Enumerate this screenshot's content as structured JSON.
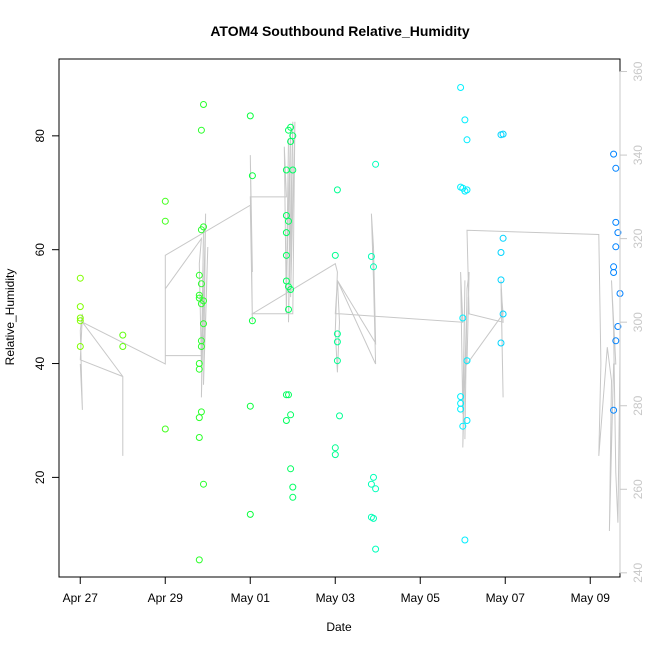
{
  "chart_data": {
    "type": "scatter",
    "title": "ATOM4 Southbound Relative_Humidity",
    "xlabel": "Date",
    "ylabel": "Relative_Humidity",
    "x_unit": "days since Apr 27",
    "xlim": [
      -0.5,
      12.7
    ],
    "ylim": [
      2.5,
      93.5
    ],
    "x_ticks": [
      {
        "value": 0,
        "label": "Apr 27"
      },
      {
        "value": 2,
        "label": "Apr 29"
      },
      {
        "value": 4,
        "label": "May 01"
      },
      {
        "value": 6,
        "label": "May 03"
      },
      {
        "value": 8,
        "label": "May 05"
      },
      {
        "value": 10,
        "label": "May 07"
      },
      {
        "value": 12,
        "label": "May 09"
      }
    ],
    "y_ticks": [
      20,
      40,
      60,
      80
    ],
    "right_axis": {
      "label": "",
      "ylim": [
        239,
        363
      ],
      "ticks": [
        240,
        260,
        280,
        300,
        320,
        340,
        360
      ],
      "color": "#c8c8c8"
    },
    "point_color_range": [
      "#80ff00",
      "#00ff40",
      "#00ffff",
      "#0080ff"
    ],
    "points": [
      {
        "x": 0.0,
        "y": 55
      },
      {
        "x": 0.0,
        "y": 50
      },
      {
        "x": 0.0,
        "y": 48
      },
      {
        "x": 0.0,
        "y": 47.5
      },
      {
        "x": 0.0,
        "y": 43
      },
      {
        "x": 1.0,
        "y": 45
      },
      {
        "x": 1.0,
        "y": 43
      },
      {
        "x": 2.0,
        "y": 68.5
      },
      {
        "x": 2.0,
        "y": 65
      },
      {
        "x": 2.0,
        "y": 28.5
      },
      {
        "x": 2.8,
        "y": 55.5
      },
      {
        "x": 2.8,
        "y": 52
      },
      {
        "x": 2.8,
        "y": 51.5
      },
      {
        "x": 2.8,
        "y": 40
      },
      {
        "x": 2.8,
        "y": 39
      },
      {
        "x": 2.8,
        "y": 30.5
      },
      {
        "x": 2.8,
        "y": 27
      },
      {
        "x": 2.8,
        "y": 5.5
      },
      {
        "x": 2.85,
        "y": 81
      },
      {
        "x": 2.85,
        "y": 63.5
      },
      {
        "x": 2.85,
        "y": 54
      },
      {
        "x": 2.85,
        "y": 50.5
      },
      {
        "x": 2.85,
        "y": 44
      },
      {
        "x": 2.85,
        "y": 43
      },
      {
        "x": 2.85,
        "y": 31.5
      },
      {
        "x": 2.9,
        "y": 85.5
      },
      {
        "x": 2.9,
        "y": 64
      },
      {
        "x": 2.9,
        "y": 51
      },
      {
        "x": 2.9,
        "y": 47
      },
      {
        "x": 2.9,
        "y": 18.8
      },
      {
        "x": 4.0,
        "y": 83.5
      },
      {
        "x": 4.0,
        "y": 32.5
      },
      {
        "x": 4.0,
        "y": 13.5
      },
      {
        "x": 4.05,
        "y": 73
      },
      {
        "x": 4.05,
        "y": 47.5
      },
      {
        "x": 4.85,
        "y": 74
      },
      {
        "x": 4.85,
        "y": 66
      },
      {
        "x": 4.85,
        "y": 63
      },
      {
        "x": 4.85,
        "y": 59
      },
      {
        "x": 4.85,
        "y": 54.5
      },
      {
        "x": 4.85,
        "y": 34.5
      },
      {
        "x": 4.85,
        "y": 30
      },
      {
        "x": 4.9,
        "y": 81
      },
      {
        "x": 4.9,
        "y": 65
      },
      {
        "x": 4.9,
        "y": 53.5
      },
      {
        "x": 4.9,
        "y": 49.5
      },
      {
        "x": 4.9,
        "y": 34.5
      },
      {
        "x": 4.95,
        "y": 81.5
      },
      {
        "x": 4.95,
        "y": 79
      },
      {
        "x": 4.95,
        "y": 53
      },
      {
        "x": 4.95,
        "y": 31
      },
      {
        "x": 4.95,
        "y": 21.5
      },
      {
        "x": 5.0,
        "y": 80
      },
      {
        "x": 5.0,
        "y": 74
      },
      {
        "x": 5.0,
        "y": 18.3
      },
      {
        "x": 5.0,
        "y": 16.5
      },
      {
        "x": 6.0,
        "y": 59
      },
      {
        "x": 6.0,
        "y": 25.2
      },
      {
        "x": 6.0,
        "y": 24
      },
      {
        "x": 6.05,
        "y": 70.5
      },
      {
        "x": 6.05,
        "y": 45.2
      },
      {
        "x": 6.05,
        "y": 43.8
      },
      {
        "x": 6.05,
        "y": 40.5
      },
      {
        "x": 6.1,
        "y": 30.8
      },
      {
        "x": 6.85,
        "y": 58.8
      },
      {
        "x": 6.85,
        "y": 18.8
      },
      {
        "x": 6.85,
        "y": 13
      },
      {
        "x": 6.9,
        "y": 57
      },
      {
        "x": 6.9,
        "y": 20
      },
      {
        "x": 6.9,
        "y": 12.8
      },
      {
        "x": 6.95,
        "y": 75
      },
      {
        "x": 6.95,
        "y": 18
      },
      {
        "x": 6.95,
        "y": 7.4
      },
      {
        "x": 8.95,
        "y": 88.5
      },
      {
        "x": 8.95,
        "y": 71
      },
      {
        "x": 8.95,
        "y": 34.2
      },
      {
        "x": 8.95,
        "y": 33
      },
      {
        "x": 8.95,
        "y": 32
      },
      {
        "x": 9.0,
        "y": 70.8
      },
      {
        "x": 9.0,
        "y": 48
      },
      {
        "x": 9.0,
        "y": 29
      },
      {
        "x": 9.05,
        "y": 82.8
      },
      {
        "x": 9.05,
        "y": 70.3
      },
      {
        "x": 9.05,
        "y": 9
      },
      {
        "x": 9.1,
        "y": 79.3
      },
      {
        "x": 9.1,
        "y": 70.5
      },
      {
        "x": 9.1,
        "y": 40.5
      },
      {
        "x": 9.1,
        "y": 30
      },
      {
        "x": 9.9,
        "y": 80.2
      },
      {
        "x": 9.9,
        "y": 59.5
      },
      {
        "x": 9.9,
        "y": 54.7
      },
      {
        "x": 9.9,
        "y": 43.6
      },
      {
        "x": 9.95,
        "y": 80.3
      },
      {
        "x": 9.95,
        "y": 62
      },
      {
        "x": 9.95,
        "y": 48.7
      },
      {
        "x": 12.55,
        "y": 76.8
      },
      {
        "x": 12.55,
        "y": 57
      },
      {
        "x": 12.55,
        "y": 56
      },
      {
        "x": 12.55,
        "y": 31.8
      },
      {
        "x": 12.6,
        "y": 74.3
      },
      {
        "x": 12.6,
        "y": 64.8
      },
      {
        "x": 12.6,
        "y": 60.5
      },
      {
        "x": 12.6,
        "y": 44
      },
      {
        "x": 12.65,
        "y": 63
      },
      {
        "x": 12.65,
        "y": 46.5
      },
      {
        "x": 12.7,
        "y": 52.3
      }
    ],
    "secondary_series": {
      "name": "right-axis trace",
      "axis": "right",
      "color": "#c8c8c8",
      "points": [
        [
          0.0,
          290
        ],
        [
          0.05,
          279
        ],
        [
          0.0,
          298
        ],
        [
          0.05,
          302
        ],
        [
          0.0,
          291
        ],
        [
          1.0,
          287
        ],
        [
          1.0,
          268
        ],
        [
          1.0,
          287
        ],
        [
          0.05,
          300
        ],
        [
          2.0,
          290
        ],
        [
          2.0,
          308
        ],
        [
          2.85,
          320
        ],
        [
          2.8,
          314
        ],
        [
          2.85,
          290
        ],
        [
          2.9,
          322
        ],
        [
          2.85,
          282
        ],
        [
          2.95,
          326
        ],
        [
          2.9,
          285
        ],
        [
          3.0,
          318
        ],
        [
          2.95,
          300
        ],
        [
          2.85,
          292
        ],
        [
          2.0,
          292
        ],
        [
          2.0,
          316
        ],
        [
          4.0,
          328
        ],
        [
          4.05,
          300
        ],
        [
          4.0,
          340
        ],
        [
          4.05,
          312
        ],
        [
          4.0,
          330
        ],
        [
          4.85,
          330
        ],
        [
          4.8,
          342
        ],
        [
          4.85,
          302
        ],
        [
          4.9,
          344
        ],
        [
          4.85,
          308
        ],
        [
          4.95,
          346
        ],
        [
          4.9,
          300
        ],
        [
          5.0,
          348
        ],
        [
          4.95,
          306
        ],
        [
          5.05,
          348
        ],
        [
          5.0,
          302
        ],
        [
          4.05,
          302
        ],
        [
          6.0,
          314
        ],
        [
          6.05,
          312
        ],
        [
          6.0,
          298
        ],
        [
          6.05,
          288
        ],
        [
          6.1,
          300
        ],
        [
          6.05,
          310
        ],
        [
          6.95,
          295
        ],
        [
          6.9,
          318
        ],
        [
          6.85,
          326
        ],
        [
          6.9,
          310
        ],
        [
          6.95,
          290
        ],
        [
          6.05,
          310
        ],
        [
          6.0,
          302
        ],
        [
          6.1,
          302
        ],
        [
          9.0,
          300
        ],
        [
          8.95,
          312
        ],
        [
          9.0,
          278
        ],
        [
          9.05,
          310
        ],
        [
          9.0,
          270
        ],
        [
          9.1,
          306
        ],
        [
          9.05,
          272
        ],
        [
          9.1,
          308
        ],
        [
          9.15,
          312
        ],
        [
          9.1,
          290
        ],
        [
          9.95,
          302
        ],
        [
          9.9,
          308
        ],
        [
          9.95,
          282
        ],
        [
          9.9,
          310
        ],
        [
          9.95,
          300
        ],
        [
          9.15,
          302
        ],
        [
          9.1,
          322
        ],
        [
          12.2,
          321
        ],
        [
          12.25,
          290
        ],
        [
          12.2,
          268
        ],
        [
          12.4,
          294
        ],
        [
          12.5,
          286
        ],
        [
          12.45,
          250
        ],
        [
          12.55,
          290
        ],
        [
          12.6,
          290
        ],
        [
          12.5,
          310
        ],
        [
          12.55,
          298
        ],
        [
          12.6,
          264
        ],
        [
          12.65,
          252
        ],
        [
          12.7,
          292
        ]
      ]
    }
  }
}
